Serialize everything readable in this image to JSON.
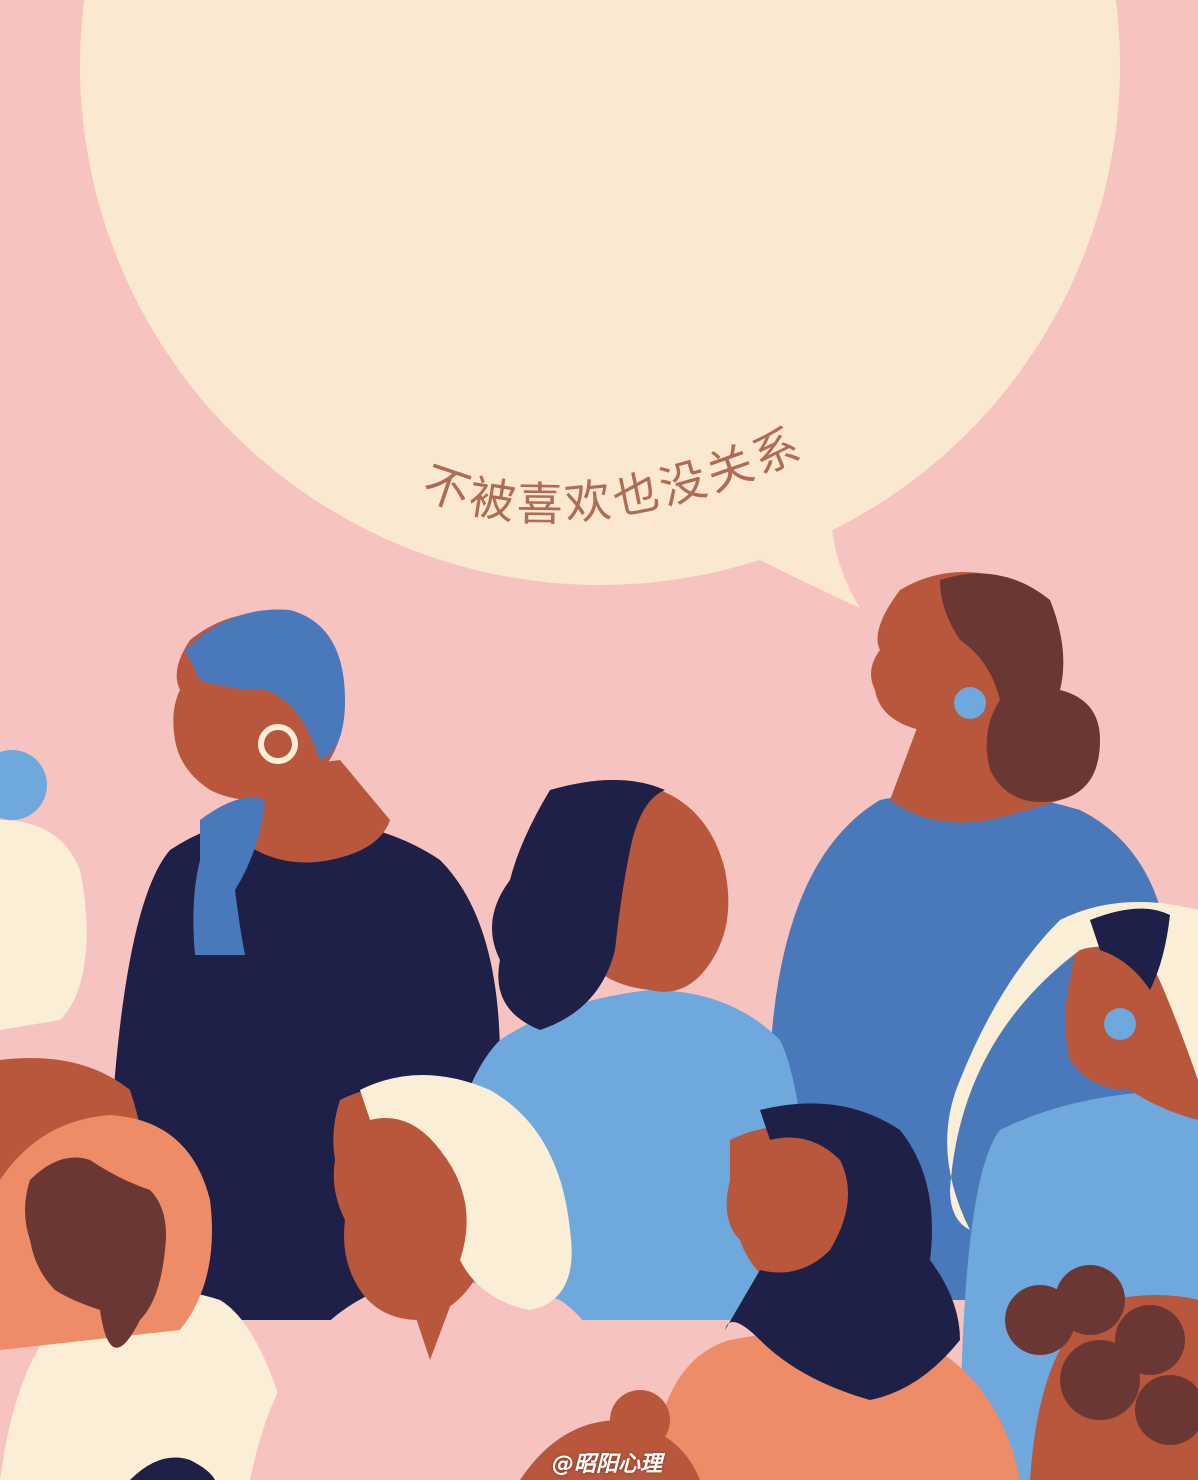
{
  "image": {
    "caption_text": "不被喜欢也没关系",
    "watermark": "@昭阳心理"
  },
  "colors": {
    "background": "#f6c3c0",
    "bubble": "#fae9d0",
    "navy": "#1f2048",
    "medium_blue": "#4979ba",
    "light_blue": "#6fa8dc",
    "skin_terracotta": "#b9573c",
    "skin_dark": "#6b3734",
    "peach": "#ef8c68",
    "cream": "#fbeed6",
    "text": "#b06a55"
  }
}
